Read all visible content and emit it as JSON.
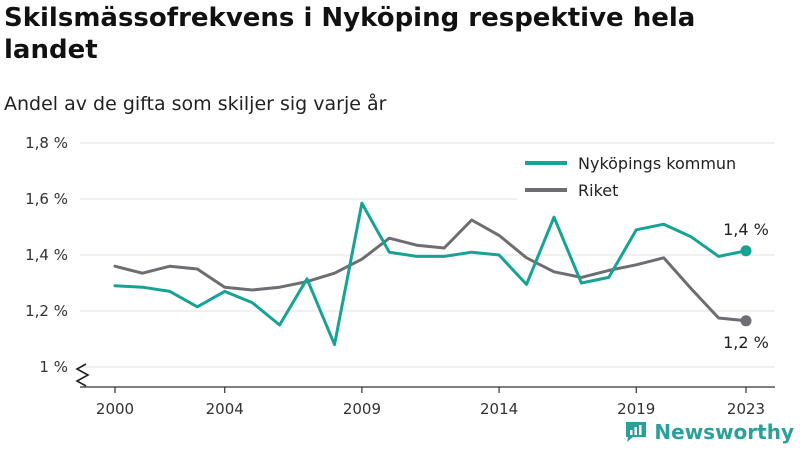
{
  "title": "Skilsmässofrekvens i Nyköping respektive hela landet",
  "subtitle": "Andel av de gifta som skiljer sig varje år",
  "brand": {
    "name": "Newsworthy",
    "icon": "newsworthy-logo-icon",
    "color": "#2aa198"
  },
  "chart_data": {
    "type": "line",
    "x": [
      2000,
      2001,
      2002,
      2003,
      2004,
      2005,
      2006,
      2007,
      2008,
      2009,
      2010,
      2011,
      2012,
      2013,
      2014,
      2015,
      2016,
      2017,
      2018,
      2019,
      2020,
      2021,
      2022,
      2023
    ],
    "x_ticks": [
      "2000",
      "2004",
      "2009",
      "2014",
      "2019",
      "2023"
    ],
    "y_ticks": [
      "1 %",
      "1,2 %",
      "1,4 %",
      "1,6 %",
      "1,8 %"
    ],
    "ylim": [
      1.0,
      1.8
    ],
    "grid": true,
    "legend_position": "top-right",
    "series": [
      {
        "name": "Nyköpings kommun",
        "color": "#16a394",
        "values": [
          1.29,
          1.285,
          1.27,
          1.215,
          1.27,
          1.23,
          1.15,
          1.315,
          1.08,
          1.585,
          1.41,
          1.395,
          1.395,
          1.41,
          1.4,
          1.295,
          1.535,
          1.3,
          1.32,
          1.49,
          1.51,
          1.465,
          1.395,
          1.415
        ],
        "end_label": "1,4 %"
      },
      {
        "name": "Riket",
        "color": "#6d6d72",
        "values": [
          1.36,
          1.335,
          1.36,
          1.35,
          1.285,
          1.275,
          1.285,
          1.305,
          1.335,
          1.385,
          1.46,
          1.435,
          1.425,
          1.525,
          1.47,
          1.39,
          1.34,
          1.32,
          1.345,
          1.365,
          1.39,
          1.28,
          1.175,
          1.165
        ],
        "end_label": "1,2 %"
      }
    ]
  }
}
